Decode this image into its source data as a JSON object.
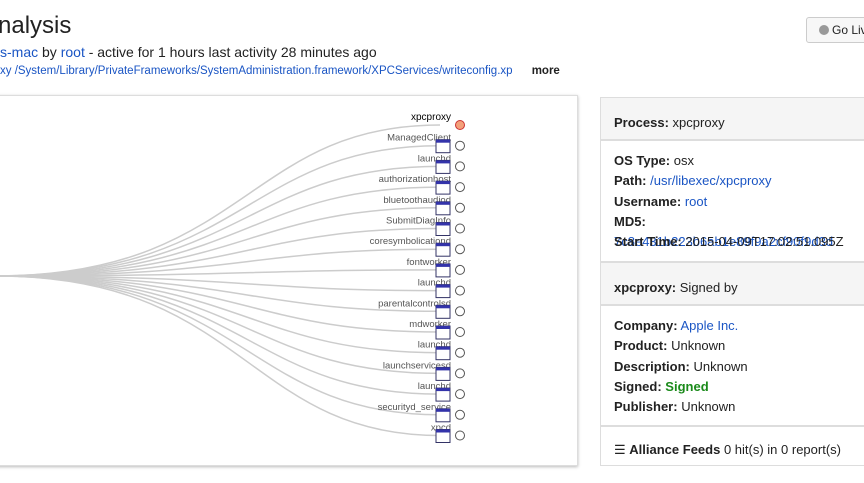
{
  "header": {
    "title": "nalysis",
    "host": "s-mac",
    "by": "by",
    "user": "root",
    "activity": "- active for 1 hours last activity 28 minutes ago",
    "path": "xy /System/Library/PrivateFrameworks/SystemAdministration.framework/XPCServices/writeconfig.xp",
    "more": "more",
    "button": "Go Liv"
  },
  "tree": {
    "nodes": [
      {
        "label": "xpcproxy"
      },
      {
        "label": "ManagedClient"
      },
      {
        "label": "launchd"
      },
      {
        "label": "authorizationhost"
      },
      {
        "label": "bluetoothaudiod"
      },
      {
        "label": "SubmitDiagInfo"
      },
      {
        "label": "coresymbolicationd"
      },
      {
        "label": "fontworker"
      },
      {
        "label": "launchd"
      },
      {
        "label": "parentalcontrolsd"
      },
      {
        "label": "mdworker"
      },
      {
        "label": "launchd"
      },
      {
        "label": "launchservicesd"
      },
      {
        "label": "launchd"
      },
      {
        "label": "securityd_service"
      },
      {
        "label": "xpcd"
      }
    ]
  },
  "panel": {
    "process": {
      "key": "Process:",
      "value": "xpcproxy"
    },
    "info": [
      {
        "key": "OS Type:",
        "value": "osx"
      },
      {
        "key": "Path:",
        "value": "/usr/libexec/xpcproxy"
      },
      {
        "key": "Username:",
        "value": "root"
      },
      {
        "key": "MD5:",
        "value": "7c8e431b223b6ab1e89f9a2cf90f9d3d"
      },
      {
        "key": "Start Time:",
        "value": "2015-04-09T17:02:51.095Z"
      }
    ],
    "signed_header": {
      "key": "xpcproxy:",
      "value": "Signed by"
    },
    "signing": [
      {
        "key": "Company:",
        "value": "Apple Inc."
      },
      {
        "key": "Product:",
        "value": "Unknown"
      },
      {
        "key": "Description:",
        "value": "Unknown"
      },
      {
        "key": "Signed:",
        "value": "Signed"
      },
      {
        "key": "Publisher:",
        "value": "Unknown"
      }
    ],
    "feeds": {
      "key": "Alliance Feeds",
      "value": "0 hit(s) in 0 report(s)"
    }
  }
}
